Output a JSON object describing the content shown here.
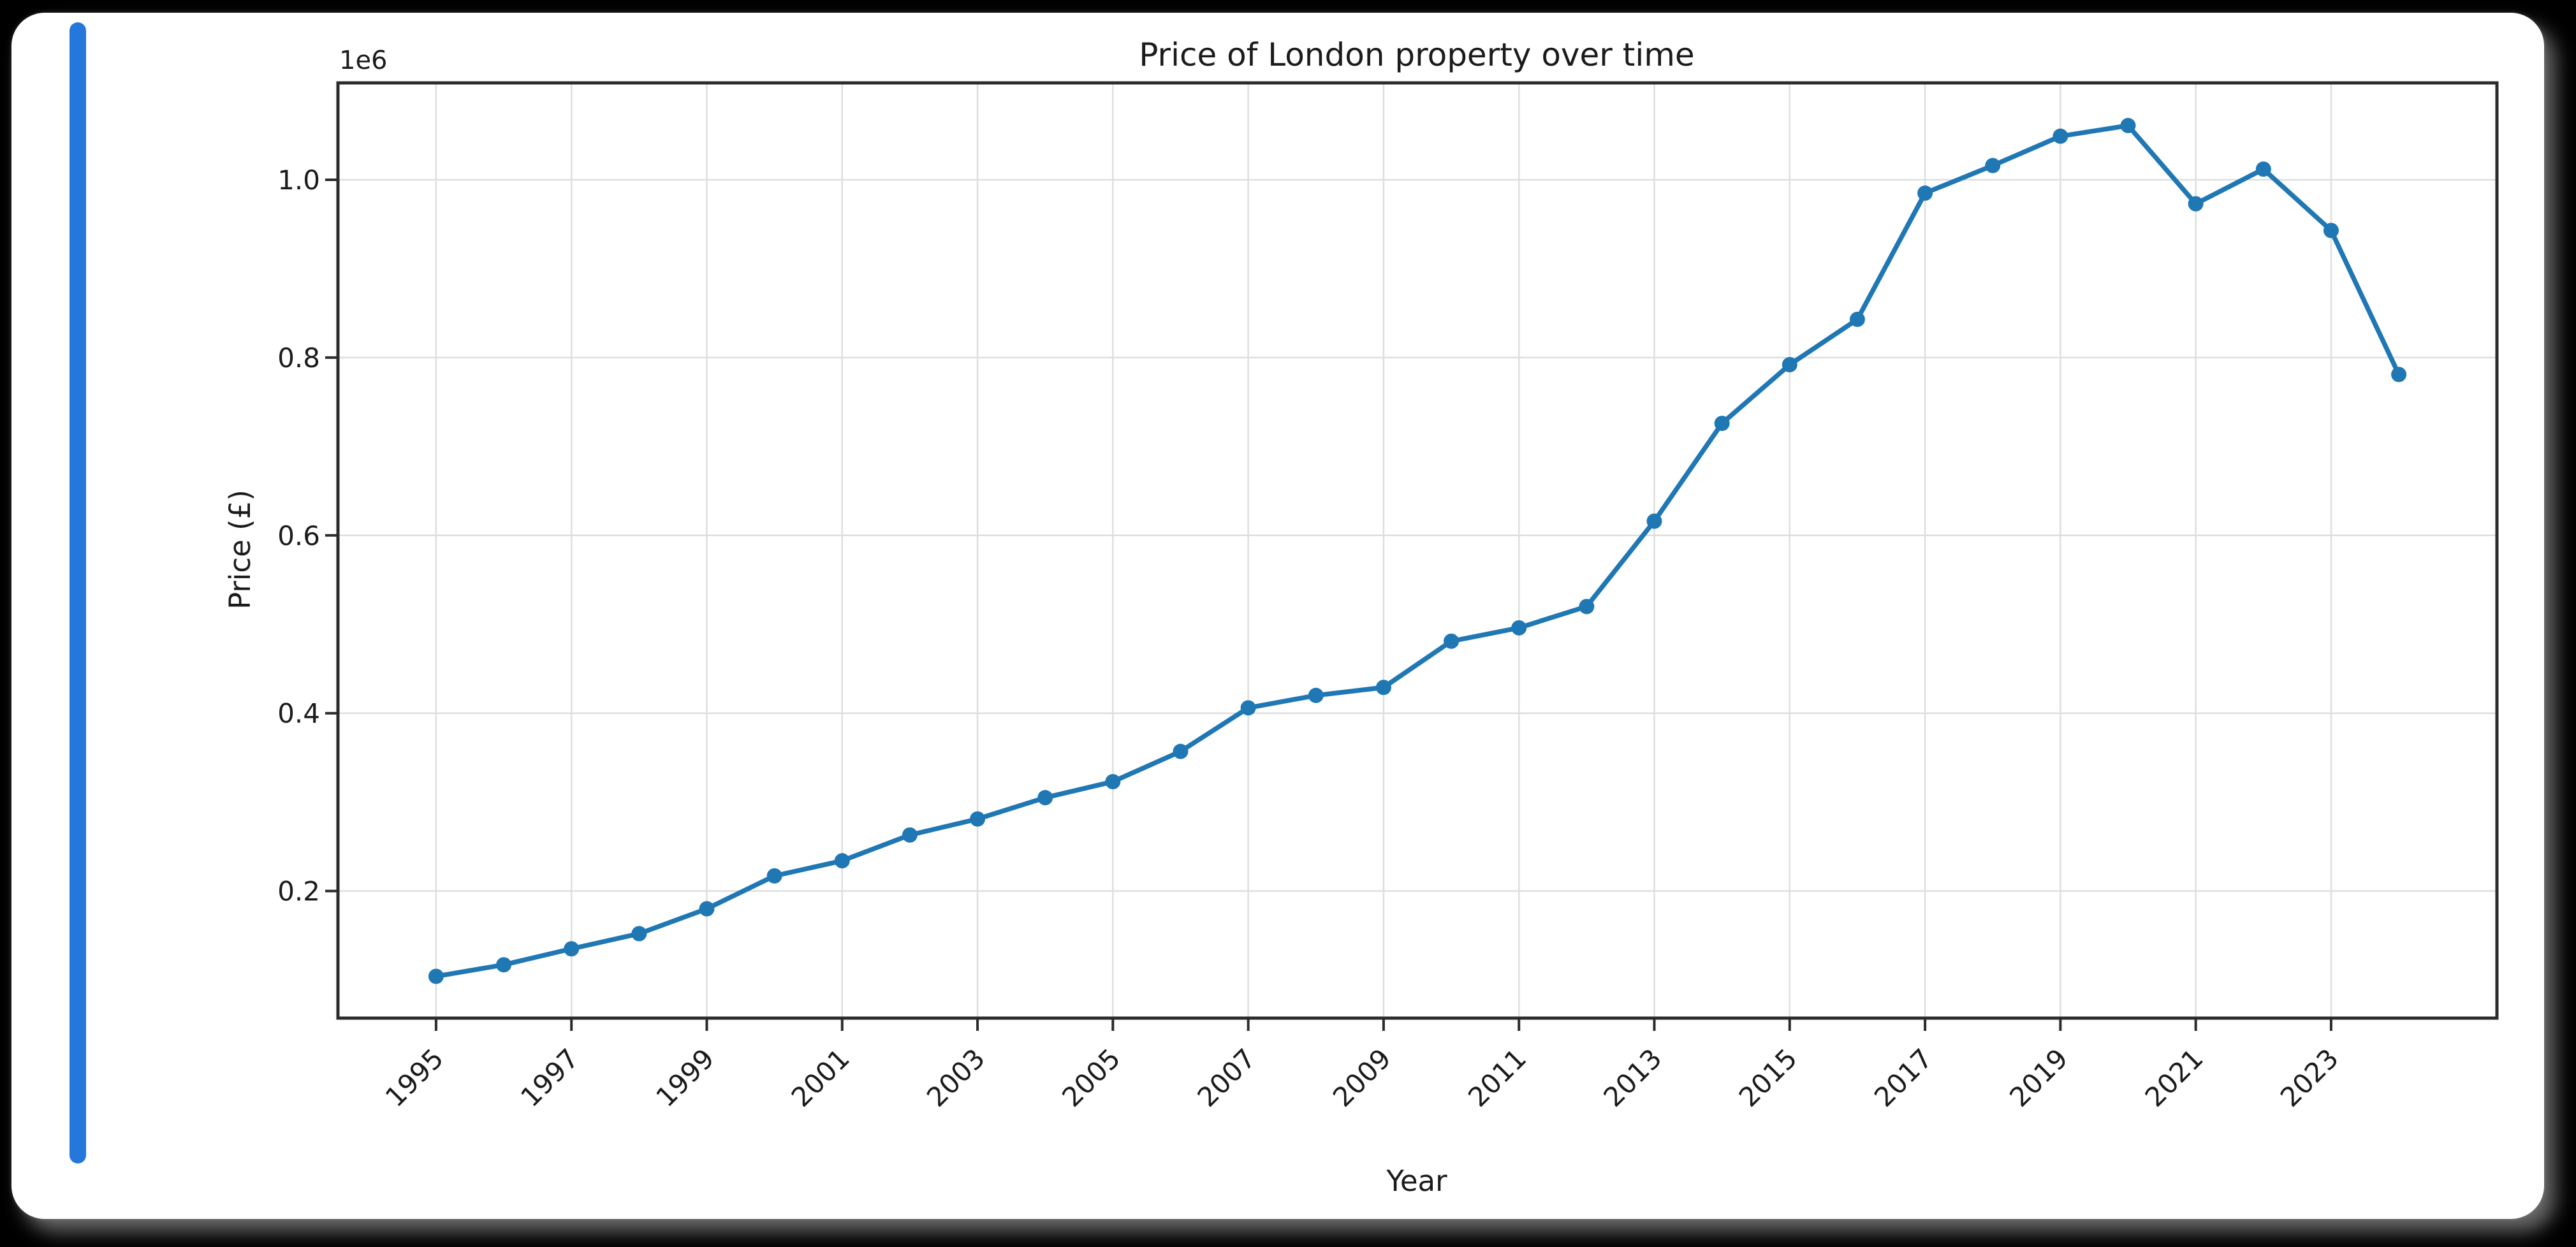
{
  "page": {
    "background_color": "#000000",
    "card_color": "#ffffff",
    "accent_bar_color": "#2577DB"
  },
  "chart_data": {
    "type": "line",
    "title": "Price of London property over time",
    "xlabel": "Year",
    "ylabel": "Price (£)",
    "offset_label": "1e6",
    "series_color": "#1f77b4",
    "grid": true,
    "grid_color": "#dedede",
    "spine_color": "#2b2b2b",
    "legend": "none",
    "x": [
      1995,
      1996,
      1997,
      1998,
      1999,
      2000,
      2001,
      2002,
      2003,
      2004,
      2005,
      2006,
      2007,
      2008,
      2009,
      2010,
      2011,
      2012,
      2013,
      2014,
      2015,
      2016,
      2017,
      2018,
      2019,
      2020,
      2021,
      2022,
      2023,
      2024
    ],
    "y": [
      104000,
      117000,
      135000,
      152000,
      180000,
      217000,
      234000,
      263000,
      281000,
      305000,
      323000,
      357000,
      406000,
      420000,
      429000,
      481000,
      496000,
      520000,
      616000,
      726000,
      792000,
      843000,
      985000,
      1016000,
      1049000,
      1061000,
      973000,
      1012000,
      943000,
      781000
    ],
    "x_ticks": [
      1995,
      1997,
      1999,
      2001,
      2003,
      2005,
      2007,
      2009,
      2011,
      2013,
      2015,
      2017,
      2019,
      2021,
      2023
    ],
    "x_tick_rotation_deg": 45,
    "y_ticks": [
      200000,
      400000,
      600000,
      800000,
      1000000
    ],
    "y_tick_labels": [
      "0.2",
      "0.4",
      "0.6",
      "0.8",
      "1.0"
    ],
    "xlim": [
      1993.55,
      2025.45
    ],
    "ylim": [
      57000,
      1109000
    ],
    "marker": "circle"
  }
}
